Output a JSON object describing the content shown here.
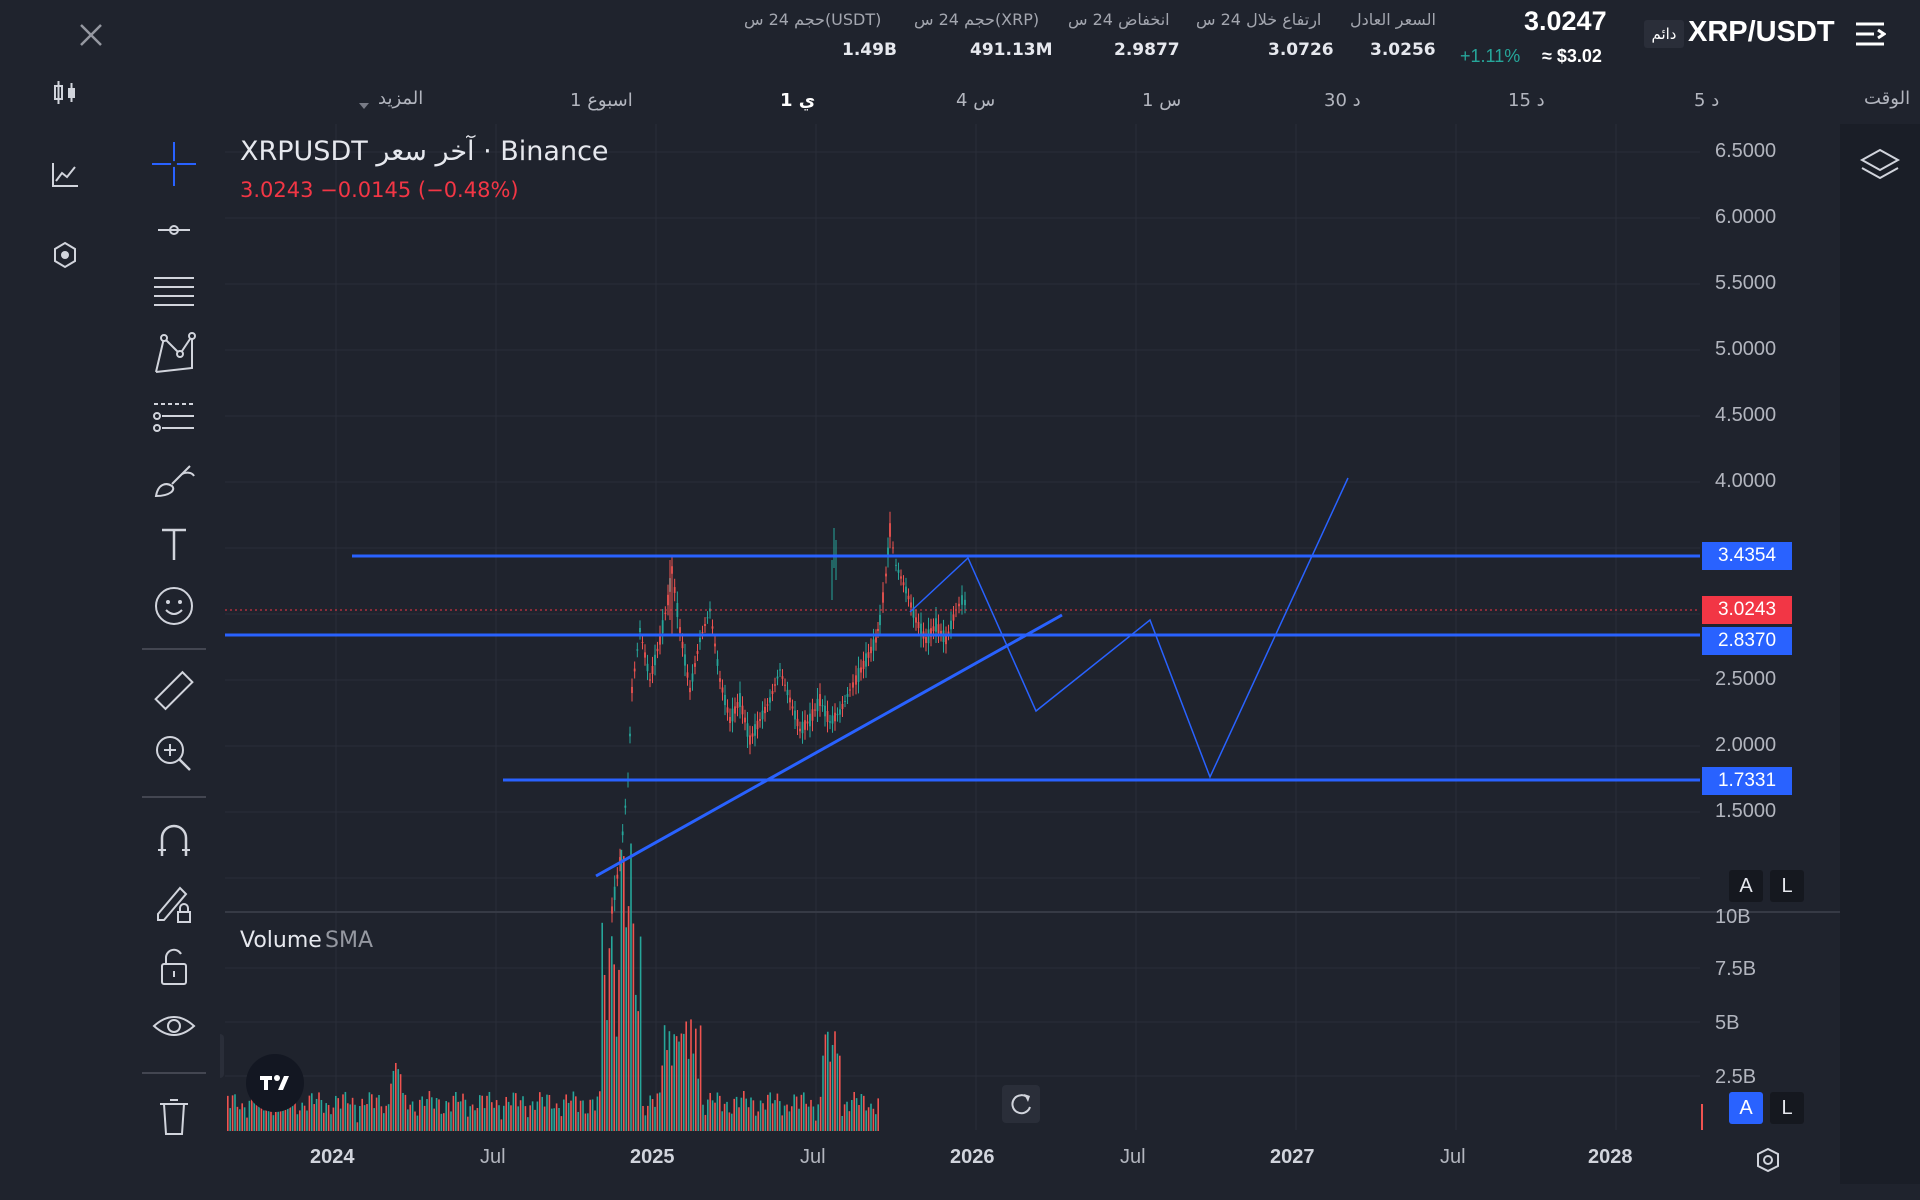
{
  "header": {
    "symbol": "XRP/USDT",
    "contract_type": "دائم",
    "last_price": "3.0247",
    "change_pct": "+1.11%",
    "usd_value": "≈ $3.02",
    "stats": [
      {
        "label": "السعر العادل",
        "value": "3.0256"
      },
      {
        "label": "ارتفاع خلال 24 س",
        "value": "3.0726"
      },
      {
        "label": "انخفاض 24 س",
        "value": "2.9877"
      },
      {
        "label": "حجم 24 س(XRP)",
        "value": "491.13M"
      },
      {
        "label": "حجم 24 س(USDT)",
        "value": "1.49B"
      }
    ],
    "timeframes": [
      "الوقت",
      "5 د",
      "15 د",
      "30 د",
      "1 س",
      "4 س",
      "1 ي",
      "1 اسبوع",
      "المزيد"
    ],
    "active_timeframe": "1 ي"
  },
  "chart": {
    "legend_title": "XRPUSDT آخر سعر · Binance",
    "legend_values": "3.0243  −0.0145 (−0.48%)",
    "volume_label": "Volume",
    "volume_ma_label": "SMA",
    "price_axis_ticks": [
      "6.5000",
      "6.0000",
      "5.5000",
      "5.0000",
      "4.5000",
      "4.0000",
      "2.5000",
      "2.0000",
      "1.5000"
    ],
    "volume_axis_ticks": [
      "10B",
      "7.5B",
      "5B",
      "2.5B"
    ],
    "time_axis_ticks": [
      "2024",
      "Jul",
      "2025",
      "Jul",
      "2026",
      "Jul",
      "2027",
      "Jul",
      "2028"
    ],
    "price_tags": [
      {
        "value": "3.4354",
        "color": "#2962ff"
      },
      {
        "value": "3.0243",
        "color": "#f23645"
      },
      {
        "value": "2.8370",
        "color": "#2962ff"
      },
      {
        "value": "1.7331",
        "color": "#2962ff"
      }
    ],
    "scale_buttons": {
      "auto": "A",
      "log": "L"
    },
    "colors": {
      "up": "#26a69a",
      "down": "#ef5350",
      "drawing": "#2962ff",
      "last_price": "#f23645"
    }
  },
  "toolbar_icons": [
    "crosshair-icon",
    "trend-line-icon",
    "fib-icon",
    "pattern-icon",
    "prediction-icon",
    "brush-icon",
    "text-icon",
    "emoji-icon",
    "ruler-icon",
    "zoom-in-icon",
    "magnet-icon",
    "lock-drawing-icon",
    "unlock-icon",
    "eye-icon",
    "trash-icon"
  ]
}
